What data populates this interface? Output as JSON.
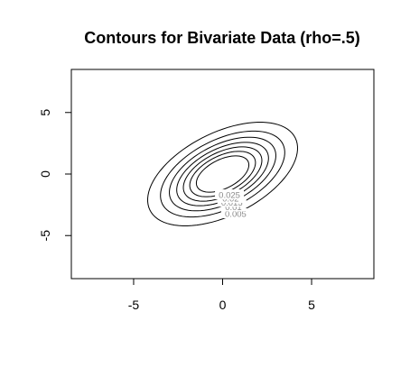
{
  "chart_data": {
    "type": "contour",
    "title": "Contours for Bivariate Data (rho=.5)",
    "xlabel": "",
    "ylabel": "",
    "xlim": [
      -8.5,
      8.5
    ],
    "ylim": [
      -8.5,
      8.5
    ],
    "x_ticks": [
      {
        "value": -5,
        "label": "-5"
      },
      {
        "value": 0,
        "label": "0"
      },
      {
        "value": 5,
        "label": "5"
      }
    ],
    "y_ticks": [
      {
        "value": -5,
        "label": "-5"
      },
      {
        "value": 0,
        "label": "0"
      },
      {
        "value": 5,
        "label": "5"
      }
    ],
    "distribution": {
      "mean": [
        0,
        0
      ],
      "sd_x": 2,
      "sd_y": 2,
      "rho": 0.5
    },
    "contour_levels": [
      {
        "level": 0.005,
        "label": "0.005"
      },
      {
        "level": 0.01,
        "label": "0.01"
      },
      {
        "level": 0.015,
        "label": "0.015"
      },
      {
        "level": 0.02,
        "label": "0.02"
      },
      {
        "level": 0.025,
        "label": "0.025"
      },
      {
        "level": 0.03,
        "label": ""
      },
      {
        "level": 0.035,
        "label": ""
      }
    ],
    "grid": false,
    "legend": "none",
    "line_color": "#000000",
    "label_color": "#8a8a8a"
  }
}
